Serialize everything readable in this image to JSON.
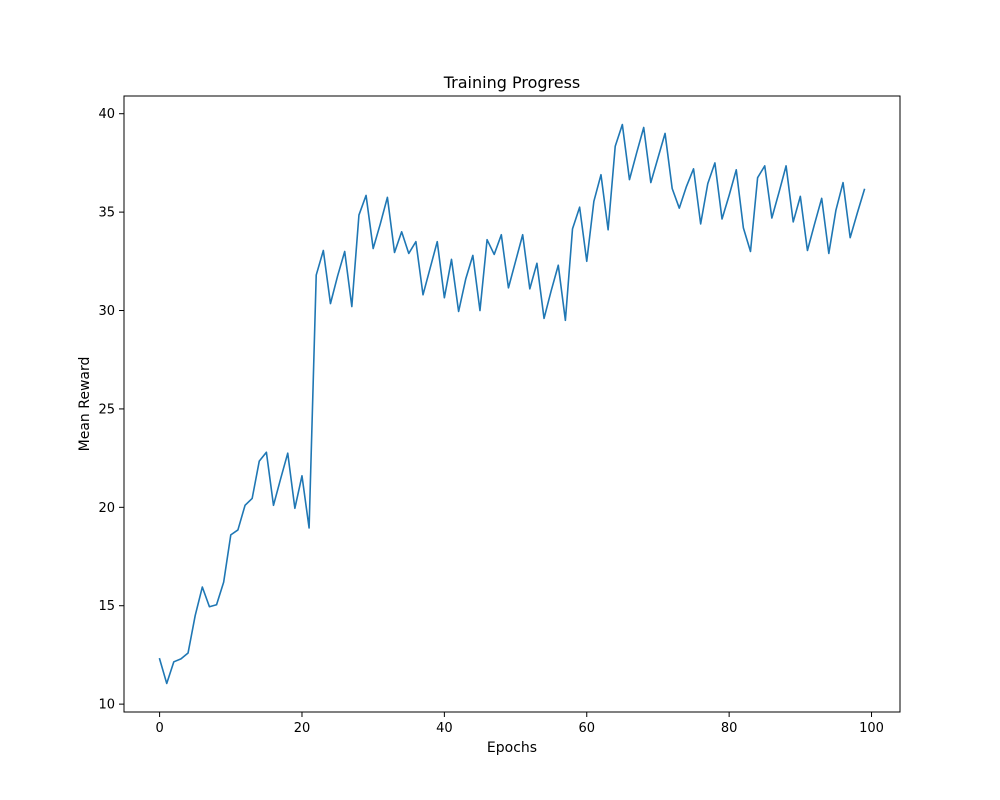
{
  "chart_data": {
    "type": "line",
    "title": "Training Progress",
    "xlabel": "Epochs",
    "ylabel": "Mean Reward",
    "xlim": [
      -5,
      104
    ],
    "ylim": [
      9.6,
      40.9
    ],
    "x_ticks": [
      0,
      20,
      40,
      60,
      80,
      100
    ],
    "y_ticks": [
      10,
      15,
      20,
      25,
      30,
      35,
      40
    ],
    "grid": false,
    "line_color": "#1f77b4",
    "series": [
      {
        "x": [
          0,
          1,
          2,
          3,
          4,
          5,
          6,
          7,
          8,
          9,
          10,
          11,
          12,
          13,
          14,
          15,
          16,
          17,
          18,
          19,
          20,
          21,
          22,
          23,
          24,
          25,
          26,
          27,
          28,
          29,
          30,
          31,
          32,
          33,
          34,
          35,
          36,
          37,
          38,
          39,
          40,
          41,
          42,
          43,
          44,
          45,
          46,
          47,
          48,
          49,
          50,
          51,
          52,
          53,
          54,
          55,
          56,
          57,
          58,
          59,
          60,
          61,
          62,
          63,
          64,
          65,
          66,
          67,
          68,
          69,
          70,
          71,
          72,
          73,
          74,
          75,
          76,
          77,
          78,
          79,
          80,
          81,
          82,
          83,
          84,
          85,
          86,
          87,
          88,
          89,
          90,
          91,
          92,
          93,
          94,
          95,
          96,
          97,
          98,
          99
        ],
        "values": [
          12.3,
          11.05,
          12.15,
          12.3,
          12.6,
          14.5,
          15.95,
          14.95,
          15.05,
          16.2,
          18.6,
          18.85,
          20.1,
          20.45,
          22.35,
          22.8,
          20.1,
          21.45,
          22.75,
          19.95,
          21.6,
          18.95,
          31.8,
          33.05,
          30.35,
          31.75,
          33.0,
          30.2,
          34.85,
          35.85,
          33.15,
          34.4,
          35.75,
          32.95,
          34.0,
          32.9,
          33.5,
          30.8,
          32.15,
          33.5,
          30.65,
          32.6,
          29.95,
          31.6,
          32.8,
          30.0,
          33.6,
          32.85,
          33.85,
          31.15,
          32.5,
          33.85,
          31.1,
          32.4,
          29.6,
          31.0,
          32.3,
          29.5,
          34.15,
          35.25,
          32.5,
          35.55,
          36.9,
          34.1,
          38.35,
          39.45,
          36.65,
          38.0,
          39.3,
          36.5,
          37.75,
          39.0,
          36.2,
          35.2,
          36.3,
          37.2,
          34.4,
          36.45,
          37.5,
          34.65,
          35.85,
          37.15,
          34.2,
          33.0,
          36.75,
          37.35,
          34.7,
          36.0,
          37.35,
          34.5,
          35.8,
          33.05,
          34.4,
          35.7,
          32.9,
          35.1,
          36.5,
          33.7,
          34.95,
          36.15
        ]
      }
    ]
  }
}
